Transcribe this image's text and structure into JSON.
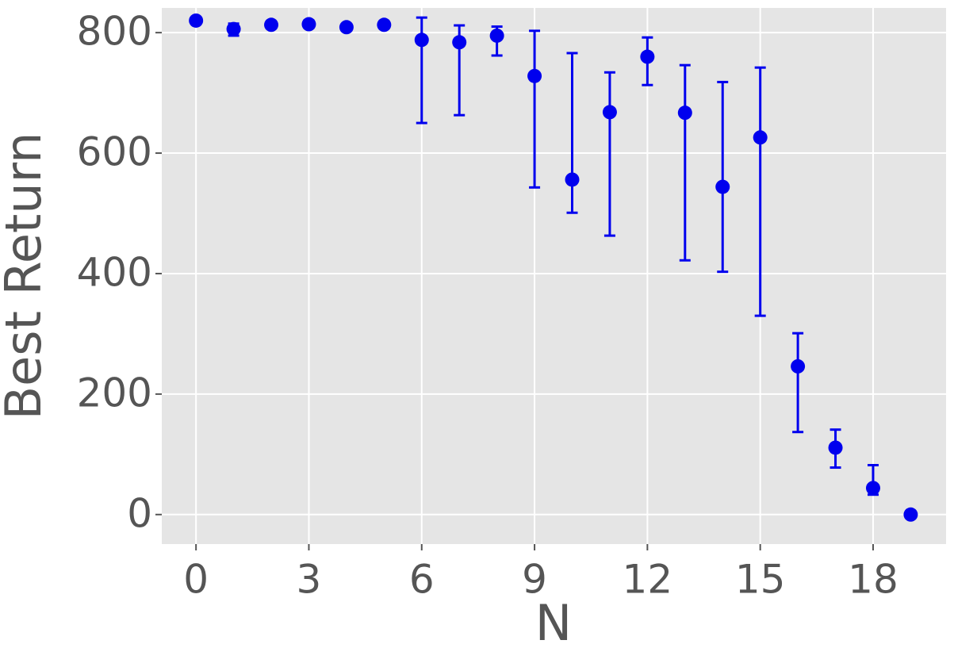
{
  "chart_data": {
    "type": "errorbar",
    "x_label": "N",
    "y_label": "Best Return",
    "x": [
      0,
      1,
      2,
      3,
      4,
      5,
      6,
      7,
      8,
      9,
      10,
      11,
      12,
      13,
      14,
      15,
      16,
      17,
      18,
      19
    ],
    "values": [
      820,
      806,
      813,
      814,
      809,
      813,
      788,
      784,
      795,
      728,
      556,
      668,
      760,
      667,
      544,
      626,
      246,
      111,
      44,
      0
    ],
    "lower": [
      null,
      795,
      null,
      808,
      null,
      null,
      650,
      663,
      762,
      543,
      501,
      463,
      713,
      422,
      403,
      330,
      137,
      78,
      33,
      null
    ],
    "upper": [
      null,
      815,
      null,
      820,
      null,
      null,
      825,
      812,
      810,
      803,
      766,
      734,
      792,
      746,
      718,
      742,
      301,
      141,
      82,
      null
    ],
    "color": "#0000ee",
    "xlim": [
      -0.91,
      19.94
    ],
    "xticks": [
      0,
      3,
      6,
      9,
      12,
      15,
      18
    ],
    "ylim": [
      -49,
      841
    ],
    "yticks": [
      0,
      200,
      400,
      600,
      800
    ],
    "grid": true
  }
}
